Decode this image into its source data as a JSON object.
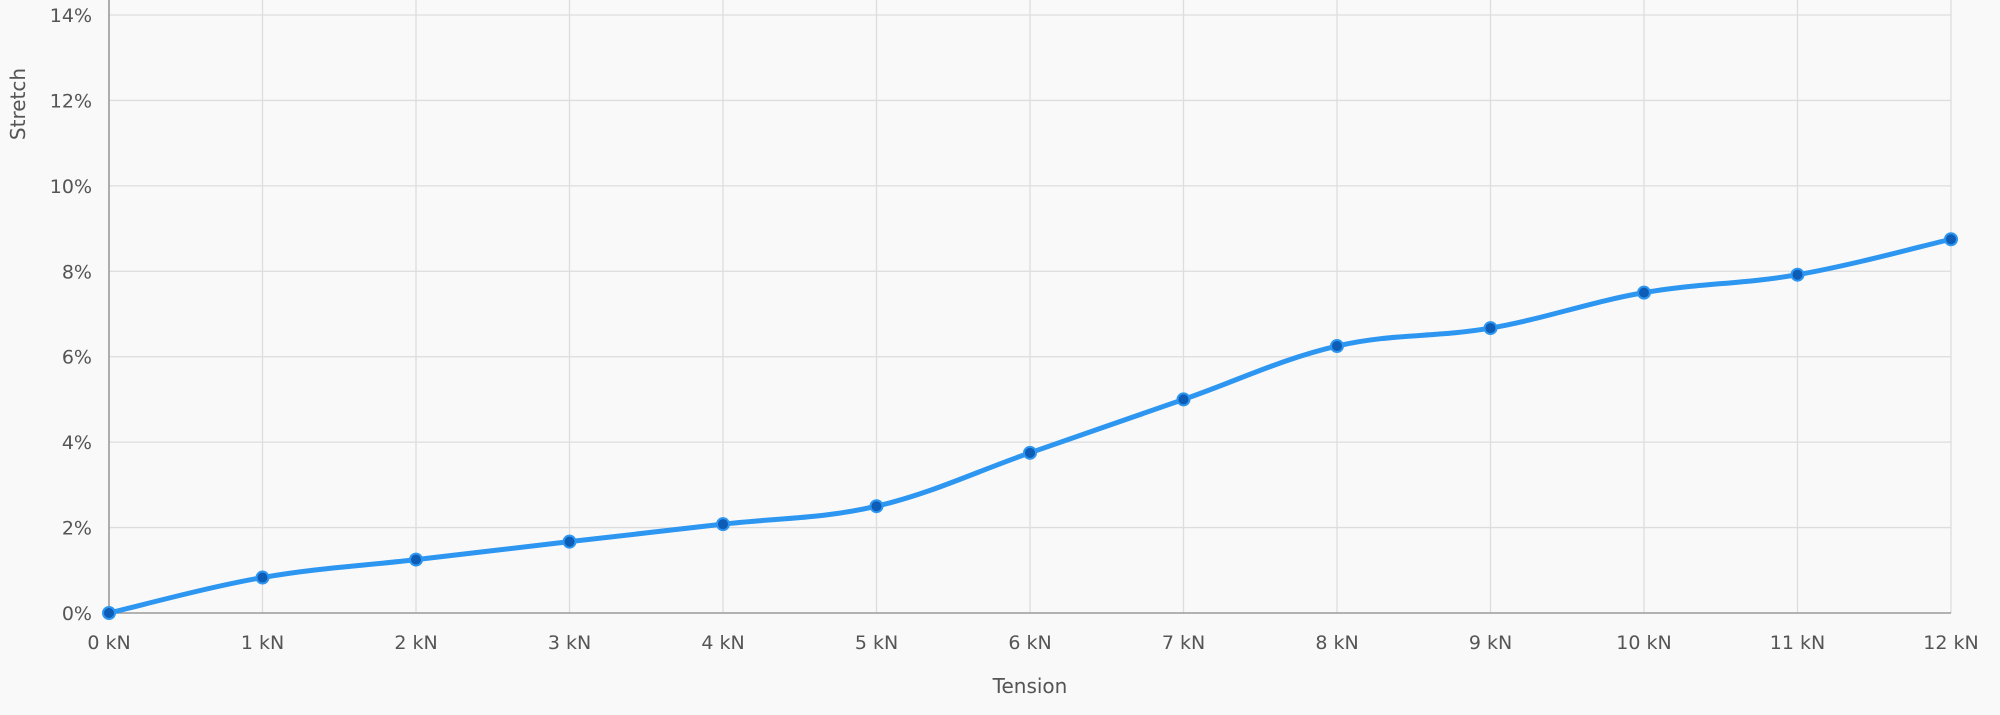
{
  "chart_data": {
    "type": "line",
    "title": "",
    "xlabel": "Tension",
    "ylabel": "Stretch",
    "x": [
      0,
      1,
      2,
      3,
      4,
      5,
      6,
      7,
      8,
      9,
      10,
      11,
      12
    ],
    "x_tick_labels": [
      "0 kN",
      "1 kN",
      "2 kN",
      "3 kN",
      "4 kN",
      "5 kN",
      "6 kN",
      "7 kN",
      "8 kN",
      "9 kN",
      "10 kN",
      "11 kN",
      "12 kN"
    ],
    "y_ticks": [
      0,
      2,
      4,
      6,
      8,
      10,
      12,
      14
    ],
    "y_tick_labels": [
      "0%",
      "2%",
      "4%",
      "6%",
      "8%",
      "10%",
      "12%",
      "14%"
    ],
    "xlim": [
      0,
      12
    ],
    "ylim": [
      0,
      14
    ],
    "grid": true,
    "legend": "none",
    "series": [
      {
        "values": [
          0,
          0.83,
          1.25,
          1.67,
          2.08,
          2.5,
          3.75,
          5.0,
          6.25,
          6.67,
          7.5,
          7.92,
          8.75
        ],
        "color": "#2d96f0",
        "marker_color": "#0d5cb6"
      }
    ]
  }
}
